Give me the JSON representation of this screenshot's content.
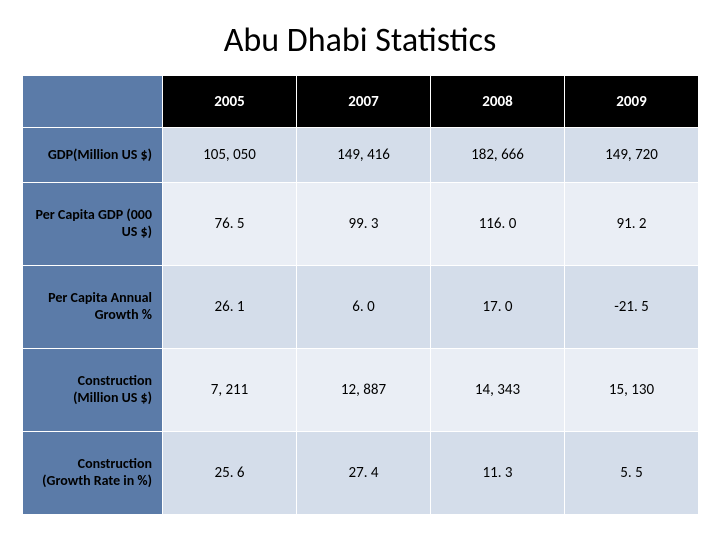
{
  "title": "Abu Dhabi Statistics",
  "table": {
    "type": "table",
    "colors": {
      "header_bg": "#000000",
      "header_text": "#ffffff",
      "rowhead_bg": "#5b7ba8",
      "row_even_bg": "#d4ddea",
      "row_odd_bg": "#eaeef5",
      "border": "#ffffff"
    },
    "title_fontsize": 34,
    "header_fontsize": 15,
    "cell_fontsize": 15,
    "columns": [
      "2005",
      "2007",
      "2008",
      "2009"
    ],
    "rows": [
      {
        "label": "GDP(Million US $)",
        "values": [
          "105, 050",
          "149, 416",
          "182, 666",
          "149, 720"
        ]
      },
      {
        "label": "Per Capita GDP (000 US $)",
        "values": [
          "76. 5",
          "99. 3",
          "116. 0",
          "91. 2"
        ]
      },
      {
        "label": "Per Capita Annual Growth %",
        "values": [
          "26. 1",
          "6. 0",
          "17. 0",
          "-21. 5"
        ]
      },
      {
        "label": "Construction (Million US $)",
        "values": [
          "7, 211",
          "12, 887",
          "14, 343",
          "15, 130"
        ]
      },
      {
        "label": "Construction (Growth Rate in %)",
        "values": [
          "25. 6",
          "27. 4",
          "11. 3",
          "5. 5"
        ]
      }
    ]
  }
}
